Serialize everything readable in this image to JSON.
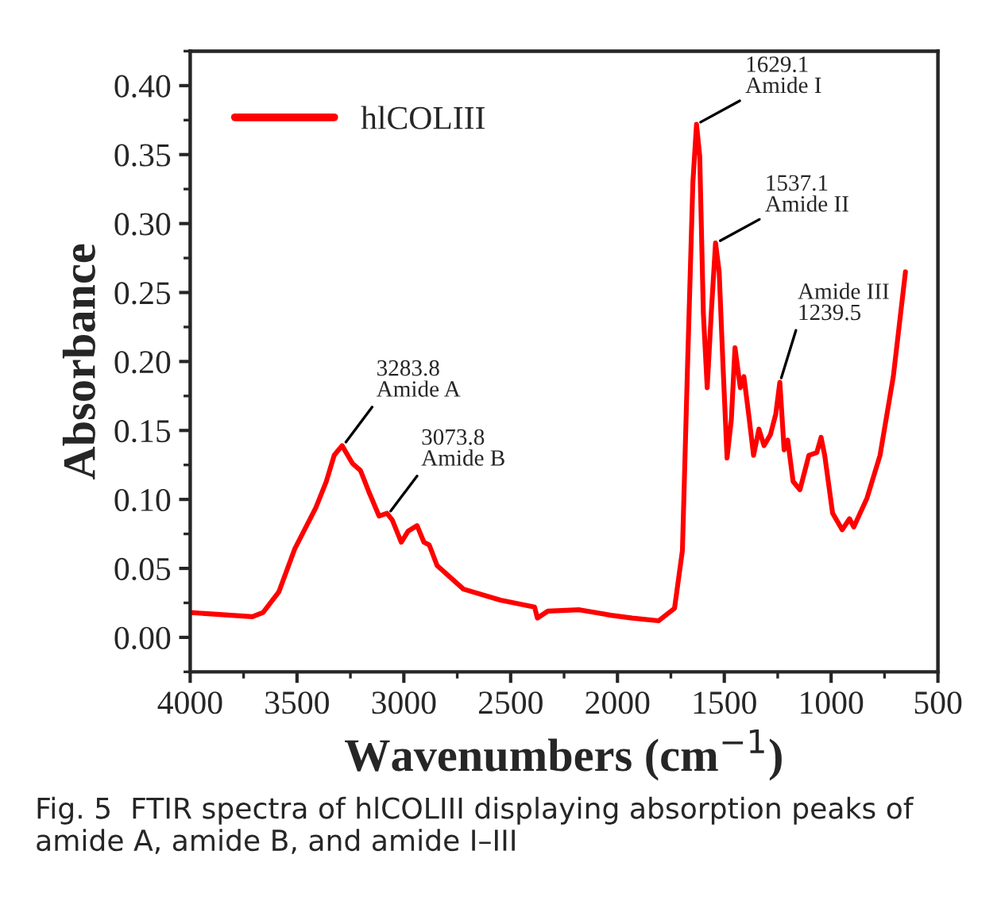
{
  "chart_data": {
    "type": "line",
    "xlabel": "Wavenumbers (cm$^{−1}$)",
    "ylabel": "Absorbance",
    "x": [
      4000,
      3709,
      3659,
      3585,
      3511,
      3412,
      3363,
      3326,
      3289,
      3240,
      3203,
      3165,
      3116,
      3079,
      3054,
      3012,
      2980,
      2938,
      2906,
      2881,
      2844,
      2721,
      2548,
      2388,
      2375,
      2326,
      2178,
      2030,
      1931,
      1808,
      1733,
      1696,
      1672,
      1647,
      1630,
      1615,
      1598,
      1580,
      1561,
      1541,
      1524,
      1506,
      1487,
      1467,
      1450,
      1425,
      1408,
      1383,
      1363,
      1338,
      1314,
      1284,
      1259,
      1240,
      1220,
      1203,
      1178,
      1146,
      1104,
      1067,
      1047,
      1030,
      993,
      948,
      914,
      894,
      832,
      771,
      709,
      652
    ],
    "series": [
      {
        "name": "hlCOLIII",
        "color": "#ff0000",
        "values": [
          0.018,
          0.015,
          0.018,
          0.033,
          0.064,
          0.094,
          0.113,
          0.132,
          0.139,
          0.126,
          0.121,
          0.106,
          0.088,
          0.09,
          0.085,
          0.069,
          0.077,
          0.081,
          0.069,
          0.067,
          0.052,
          0.035,
          0.027,
          0.022,
          0.014,
          0.019,
          0.02,
          0.016,
          0.014,
          0.012,
          0.021,
          0.063,
          0.197,
          0.33,
          0.372,
          0.349,
          0.235,
          0.181,
          0.235,
          0.286,
          0.265,
          0.197,
          0.13,
          0.158,
          0.21,
          0.181,
          0.189,
          0.158,
          0.132,
          0.151,
          0.139,
          0.147,
          0.162,
          0.185,
          0.136,
          0.143,
          0.113,
          0.107,
          0.132,
          0.134,
          0.145,
          0.132,
          0.09,
          0.078,
          0.086,
          0.08,
          0.101,
          0.132,
          0.189,
          0.265
        ]
      }
    ],
    "xlim": [
      4000,
      500
    ],
    "xticks": [
      4000,
      3500,
      3000,
      2500,
      2000,
      1500,
      1000,
      500
    ],
    "ylim": [
      -0.025,
      0.425
    ],
    "yticks": [
      {
        "value": 0,
        "label": "0.00"
      },
      {
        "value": 0.05,
        "label": "0.05"
      },
      {
        "value": 0.1,
        "label": "0.10"
      },
      {
        "value": 0.15,
        "label": "0.15"
      },
      {
        "value": 0.2,
        "label": "0.20"
      },
      {
        "value": 0.25,
        "label": "0.25"
      },
      {
        "value": 0.3,
        "label": "0.30"
      },
      {
        "value": 0.35,
        "label": "0.35"
      },
      {
        "value": 0.4,
        "label": "0.40"
      }
    ],
    "legend": "top left",
    "grid": false,
    "marker": "none",
    "line_style": "solid",
    "annotations": [
      {
        "text": "3283.8\nAmide A",
        "x": 3283.8,
        "y": 0.139
      },
      {
        "text": "3073.8\nAmide B",
        "x": 3073.8,
        "y": 0.089
      },
      {
        "text": "1629.1\nAmide I",
        "x": 1629.1,
        "y": 0.372
      },
      {
        "text": "1537.1\nAmide II",
        "x": 1537.1,
        "y": 0.286
      },
      {
        "text": "Amide III\n1239.5",
        "x": 1239.5,
        "y": 0.185
      },
      "Fig. 5  FTIR spectra of hlCOLIII displaying absorption peaks of amide A, amide B, and amide I–III"
    ]
  }
}
